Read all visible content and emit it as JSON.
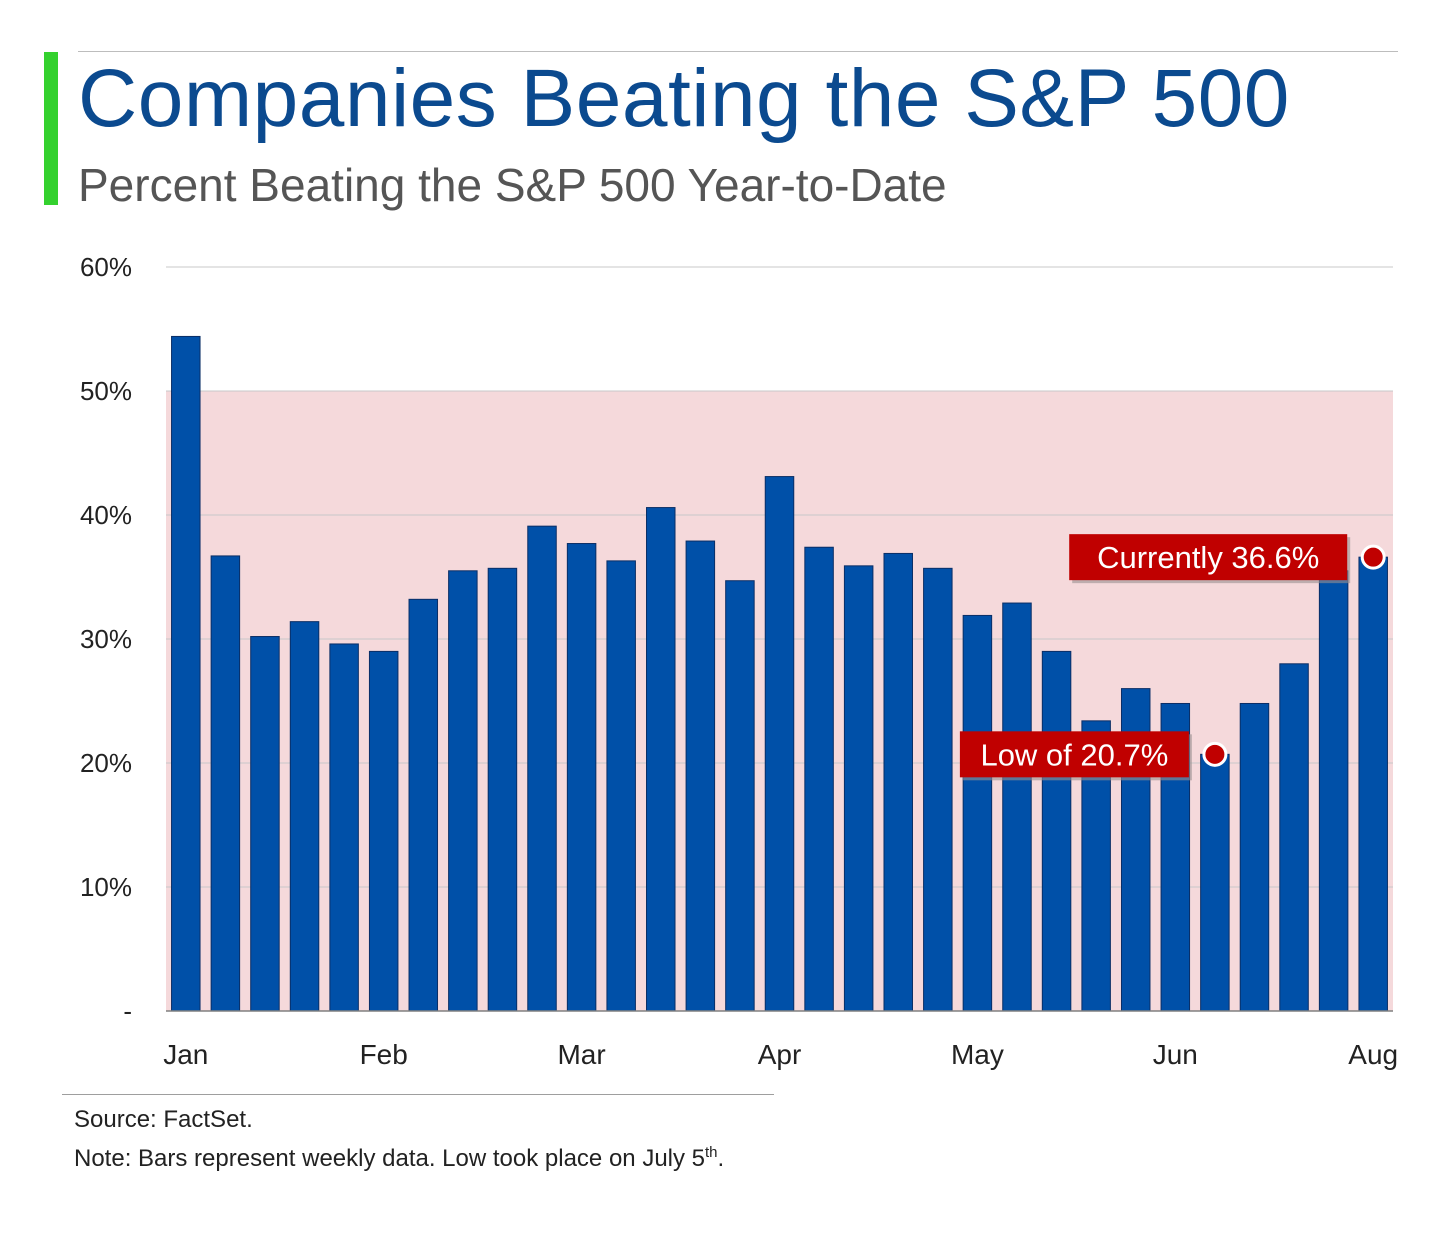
{
  "header": {
    "title": "Companies Beating the S&P 500",
    "subtitle": "Percent Beating the S&P 500 Year-to-Date"
  },
  "colors": {
    "accent": "#34d12e",
    "title": "#0b4a8f",
    "bar": "#0050a8",
    "band": "#f5d9db",
    "callout": "#c00000"
  },
  "chart_data": {
    "type": "bar",
    "title": "Companies Beating the S&P 500",
    "subtitle": "Percent Beating the S&P 500 Year-to-Date",
    "xlabel": "",
    "ylabel": "",
    "ylim": [
      0,
      60
    ],
    "y_ticks": [
      {
        "value": 60,
        "label": "60%"
      },
      {
        "value": 50,
        "label": "50%"
      },
      {
        "value": 40,
        "label": "40%"
      },
      {
        "value": 30,
        "label": "30%"
      },
      {
        "value": 20,
        "label": "20%"
      },
      {
        "value": 10,
        "label": "10%"
      },
      {
        "value": 0,
        "label": "-"
      }
    ],
    "x_tick_labels": [
      {
        "label": "Jan",
        "bar_index": 0
      },
      {
        "label": "Feb",
        "bar_index": 5
      },
      {
        "label": "Mar",
        "bar_index": 10
      },
      {
        "label": "Apr",
        "bar_index": 15
      },
      {
        "label": "May",
        "bar_index": 20
      },
      {
        "label": "Jun",
        "bar_index": 25
      },
      {
        "label": "Aug",
        "bar_index": 30
      }
    ],
    "values": [
      54.4,
      36.7,
      30.2,
      31.4,
      29.6,
      29.0,
      33.2,
      35.5,
      35.7,
      39.1,
      37.7,
      36.3,
      40.6,
      37.9,
      34.7,
      43.1,
      37.4,
      35.9,
      36.9,
      35.7,
      31.9,
      32.9,
      29.0,
      23.4,
      26.0,
      24.8,
      20.7,
      24.8,
      28.0,
      35.5,
      36.6
    ],
    "shaded_band": {
      "from": 0,
      "to": 50
    },
    "grid": true,
    "annotations": [
      {
        "label": "Currently 36.6%",
        "bar_index": 30,
        "value": 36.6
      },
      {
        "label": "Low of 20.7%",
        "bar_index": 26,
        "value": 20.7
      }
    ]
  },
  "footer": {
    "source": "Source: FactSet.",
    "note": "Note: Bars represent weekly data. Low took place on July 5",
    "note_sup": "th",
    "note_end": "."
  }
}
